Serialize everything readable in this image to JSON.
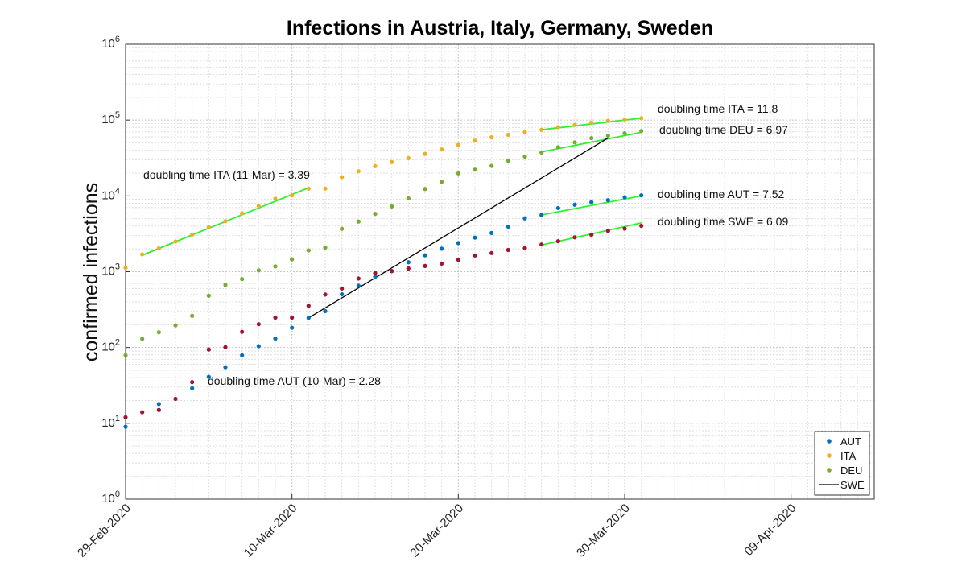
{
  "chart_data": {
    "type": "scatter",
    "title": "Infections in Austria, Italy, Germany, Sweden",
    "xlabel": "",
    "ylabel": "confirmed infections",
    "y_scale": "log",
    "ylim": [
      1,
      1000000
    ],
    "xlim": [
      "2020-02-29",
      "2020-04-14"
    ],
    "x_ticks": [
      "29-Feb-2020",
      "10-Mar-2020",
      "20-Mar-2020",
      "30-Mar-2020",
      "09-Apr-2020"
    ],
    "y_ticks": [
      {
        "base": "10",
        "exp": "0"
      },
      {
        "base": "10",
        "exp": "1"
      },
      {
        "base": "10",
        "exp": "2"
      },
      {
        "base": "10",
        "exp": "3"
      },
      {
        "base": "10",
        "exp": "4"
      },
      {
        "base": "10",
        "exp": "5"
      },
      {
        "base": "10",
        "exp": "6"
      }
    ],
    "grid": true,
    "legend_position": "bottom-right",
    "series": [
      {
        "name": "AUT",
        "color": "#0072bd",
        "points": [
          [
            "2020-02-29",
            9
          ],
          [
            "2020-03-02",
            18
          ],
          [
            "2020-03-04",
            29
          ],
          [
            "2020-03-05",
            41
          ],
          [
            "2020-03-06",
            55
          ],
          [
            "2020-03-07",
            79
          ],
          [
            "2020-03-08",
            104
          ],
          [
            "2020-03-09",
            131
          ],
          [
            "2020-03-10",
            182
          ],
          [
            "2020-03-11",
            246
          ],
          [
            "2020-03-12",
            302
          ],
          [
            "2020-03-13",
            504
          ],
          [
            "2020-03-14",
            655
          ],
          [
            "2020-03-15",
            860
          ],
          [
            "2020-03-16",
            1018
          ],
          [
            "2020-03-17",
            1332
          ],
          [
            "2020-03-18",
            1646
          ],
          [
            "2020-03-19",
            2013
          ],
          [
            "2020-03-20",
            2388
          ],
          [
            "2020-03-21",
            2814
          ],
          [
            "2020-03-22",
            3244
          ],
          [
            "2020-03-23",
            3924
          ],
          [
            "2020-03-24",
            5050
          ],
          [
            "2020-03-25",
            5588
          ],
          [
            "2020-03-26",
            6909
          ],
          [
            "2020-03-27",
            7657
          ],
          [
            "2020-03-28",
            8271
          ],
          [
            "2020-03-29",
            8788
          ],
          [
            "2020-03-30",
            9618
          ],
          [
            "2020-03-31",
            10180
          ]
        ]
      },
      {
        "name": "ITA",
        "color": "#edb120",
        "points": [
          [
            "2020-02-29",
            1128
          ],
          [
            "2020-03-01",
            1694
          ],
          [
            "2020-03-02",
            2036
          ],
          [
            "2020-03-03",
            2502
          ],
          [
            "2020-03-04",
            3089
          ],
          [
            "2020-03-05",
            3858
          ],
          [
            "2020-03-06",
            4636
          ],
          [
            "2020-03-07",
            5883
          ],
          [
            "2020-03-08",
            7375
          ],
          [
            "2020-03-09",
            9172
          ],
          [
            "2020-03-10",
            10149
          ],
          [
            "2020-03-11",
            12462
          ],
          [
            "2020-03-12",
            12462
          ],
          [
            "2020-03-13",
            17660
          ],
          [
            "2020-03-14",
            21157
          ],
          [
            "2020-03-15",
            24747
          ],
          [
            "2020-03-16",
            27980
          ],
          [
            "2020-03-17",
            31506
          ],
          [
            "2020-03-18",
            35713
          ],
          [
            "2020-03-19",
            41035
          ],
          [
            "2020-03-20",
            47021
          ],
          [
            "2020-03-21",
            53578
          ],
          [
            "2020-03-22",
            59138
          ],
          [
            "2020-03-23",
            63927
          ],
          [
            "2020-03-24",
            69176
          ],
          [
            "2020-03-25",
            74386
          ],
          [
            "2020-03-26",
            80589
          ],
          [
            "2020-03-27",
            86498
          ],
          [
            "2020-03-28",
            92472
          ],
          [
            "2020-03-29",
            97689
          ],
          [
            "2020-03-30",
            101739
          ],
          [
            "2020-03-31",
            105792
          ]
        ]
      },
      {
        "name": "DEU",
        "color": "#77ac30",
        "points": [
          [
            "2020-02-29",
            79
          ],
          [
            "2020-03-01",
            130
          ],
          [
            "2020-03-02",
            159
          ],
          [
            "2020-03-03",
            196
          ],
          [
            "2020-03-04",
            262
          ],
          [
            "2020-03-05",
            482
          ],
          [
            "2020-03-06",
            670
          ],
          [
            "2020-03-07",
            799
          ],
          [
            "2020-03-08",
            1040
          ],
          [
            "2020-03-09",
            1176
          ],
          [
            "2020-03-10",
            1457
          ],
          [
            "2020-03-11",
            1908
          ],
          [
            "2020-03-12",
            2078
          ],
          [
            "2020-03-13",
            3675
          ],
          [
            "2020-03-14",
            4585
          ],
          [
            "2020-03-15",
            5795
          ],
          [
            "2020-03-16",
            7272
          ],
          [
            "2020-03-17",
            9257
          ],
          [
            "2020-03-18",
            12327
          ],
          [
            "2020-03-19",
            15320
          ],
          [
            "2020-03-20",
            19848
          ],
          [
            "2020-03-21",
            22213
          ],
          [
            "2020-03-22",
            24873
          ],
          [
            "2020-03-23",
            29056
          ],
          [
            "2020-03-24",
            32986
          ],
          [
            "2020-03-25",
            37323
          ],
          [
            "2020-03-26",
            43938
          ],
          [
            "2020-03-27",
            50871
          ],
          [
            "2020-03-28",
            57695
          ],
          [
            "2020-03-29",
            62095
          ],
          [
            "2020-03-30",
            66885
          ],
          [
            "2020-03-31",
            71808
          ]
        ]
      },
      {
        "name": "SWE",
        "color": "#a2142f",
        "points": [
          [
            "2020-02-29",
            12
          ],
          [
            "2020-03-01",
            14
          ],
          [
            "2020-03-02",
            15
          ],
          [
            "2020-03-03",
            21
          ],
          [
            "2020-03-04",
            35
          ],
          [
            "2020-03-05",
            94
          ],
          [
            "2020-03-06",
            101
          ],
          [
            "2020-03-07",
            161
          ],
          [
            "2020-03-08",
            203
          ],
          [
            "2020-03-09",
            248
          ],
          [
            "2020-03-10",
            248
          ],
          [
            "2020-03-11",
            355
          ],
          [
            "2020-03-12",
            500
          ],
          [
            "2020-03-13",
            599
          ],
          [
            "2020-03-14",
            814
          ],
          [
            "2020-03-15",
            961
          ],
          [
            "2020-03-16",
            1022
          ],
          [
            "2020-03-17",
            1103
          ],
          [
            "2020-03-18",
            1190
          ],
          [
            "2020-03-19",
            1279
          ],
          [
            "2020-03-20",
            1439
          ],
          [
            "2020-03-21",
            1639
          ],
          [
            "2020-03-22",
            1763
          ],
          [
            "2020-03-23",
            1934
          ],
          [
            "2020-03-24",
            2046
          ],
          [
            "2020-03-25",
            2286
          ],
          [
            "2020-03-26",
            2526
          ],
          [
            "2020-03-27",
            2840
          ],
          [
            "2020-03-28",
            3069
          ],
          [
            "2020-03-29",
            3447
          ],
          [
            "2020-03-30",
            3700
          ],
          [
            "2020-03-31",
            4028
          ]
        ]
      }
    ],
    "fit_lines": [
      {
        "label": "ITA early fit",
        "color": "#33ee33",
        "from": [
          "2020-03-01",
          1650
        ],
        "to": [
          "2020-03-11",
          12800
        ]
      },
      {
        "label": "ITA fit",
        "color": "#33ee33",
        "from": [
          "2020-03-25",
          74500
        ],
        "to": [
          "2020-03-31",
          106000
        ]
      },
      {
        "label": "DEU fit",
        "color": "#33ee33",
        "from": [
          "2020-03-25",
          38000
        ],
        "to": [
          "2020-03-31",
          69000
        ]
      },
      {
        "label": "AUT fit",
        "color": "#33ee33",
        "from": [
          "2020-03-25",
          5600
        ],
        "to": [
          "2020-03-31",
          10000
        ]
      },
      {
        "label": "SWE fit",
        "color": "#33ee33",
        "from": [
          "2020-03-25",
          2250
        ],
        "to": [
          "2020-03-31",
          4400
        ]
      },
      {
        "label": "SWE",
        "color": "#000000",
        "from": [
          "2020-03-11",
          246
        ],
        "to": [
          "2020-03-29",
          58000
        ]
      }
    ],
    "annotations": [
      {
        "text": "doubling time ITA = 11.8",
        "x": "2020-04-02",
        "y": 135000
      },
      {
        "text": "doubling time DEU = 6.97",
        "x": "2020-04-02",
        "y": 80000
      },
      {
        "text": "doubling time ITA (11-Mar) = 3.39",
        "x": "2020-03-01",
        "y": 18000
      },
      {
        "text": "doubling time AUT = 7.52",
        "x": "2020-04-02",
        "y": 13500
      },
      {
        "text": "doubling time SWE = 6.09",
        "x": "2020-04-02",
        "y": 6000
      },
      {
        "text": "doubling time AUT (10-Mar) = 2.28",
        "x": "2020-03-05",
        "y": 38000
      }
    ],
    "legend": [
      {
        "label": "AUT",
        "kind": "marker",
        "color": "#0072bd"
      },
      {
        "label": "ITA",
        "kind": "marker",
        "color": "#edb120"
      },
      {
        "label": "DEU",
        "kind": "marker",
        "color": "#77ac30"
      },
      {
        "label": "SWE",
        "kind": "line",
        "color": "#000000"
      }
    ]
  }
}
